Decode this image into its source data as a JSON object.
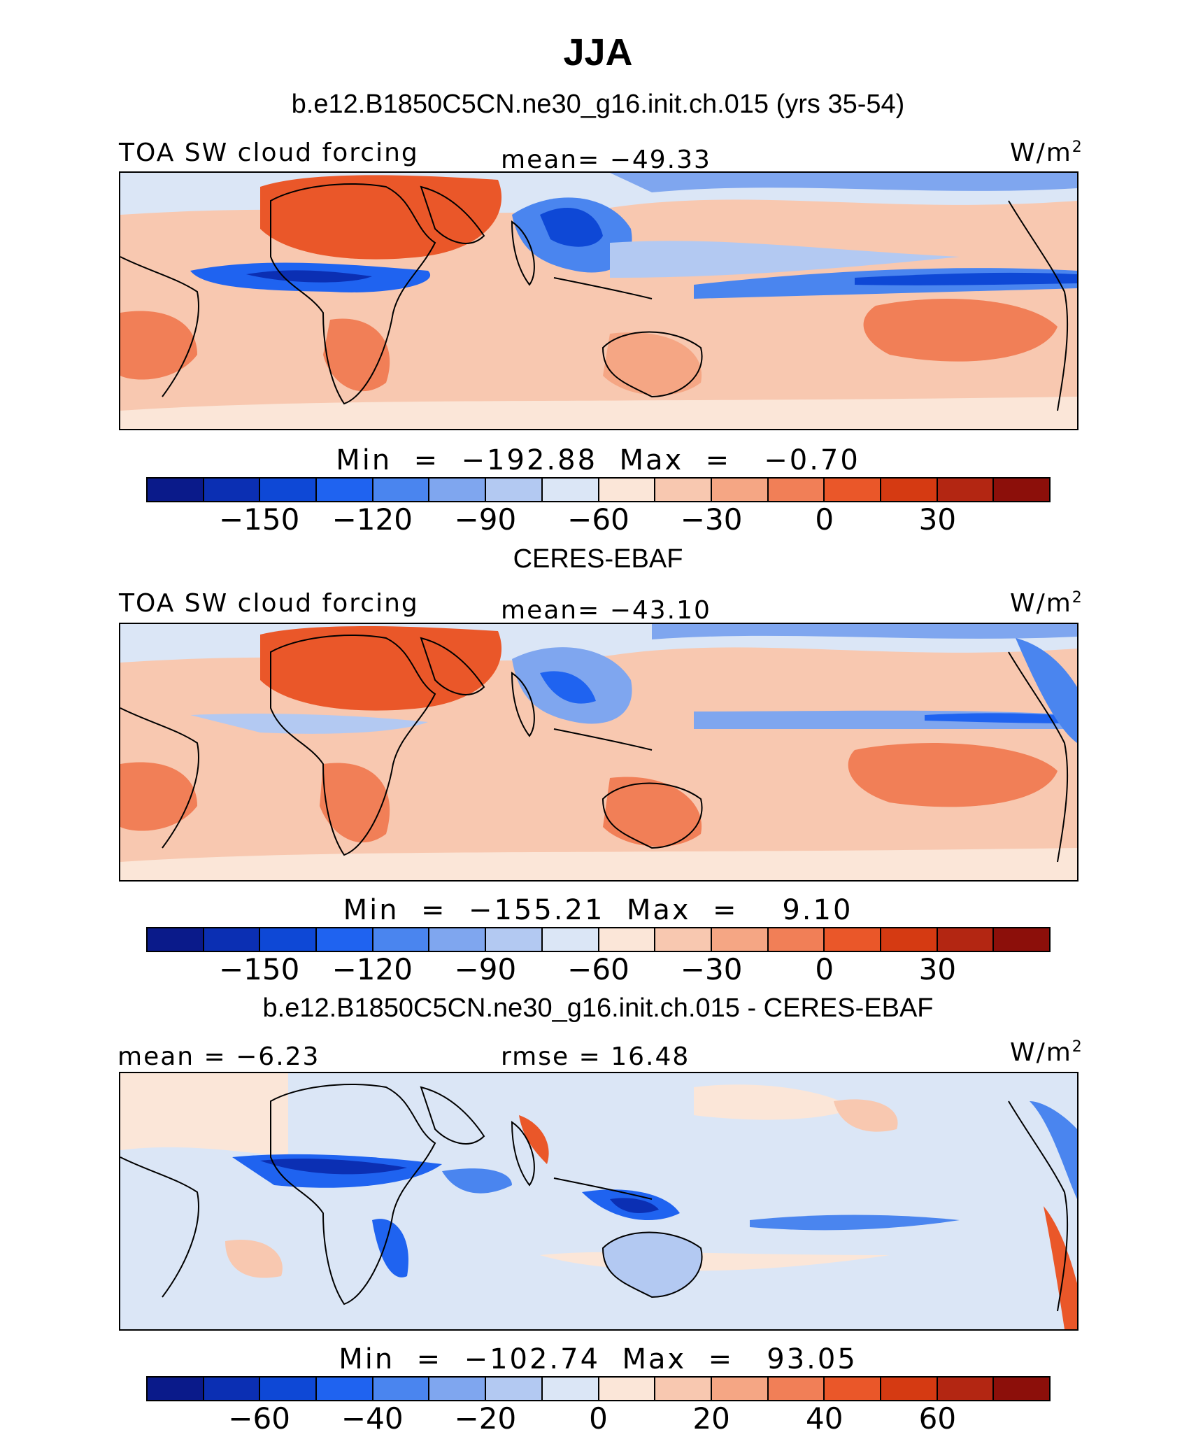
{
  "title": "JJA",
  "palette": [
    "#0a1a8a",
    "#0b2fb3",
    "#0e48d6",
    "#1f63f0",
    "#4a85ef",
    "#7fa6ef",
    "#b3c9f2",
    "#dbe6f6",
    "#fbe6d8",
    "#f8c8b0",
    "#f5a684",
    "#f17f57",
    "#ea5729",
    "#d53a12",
    "#b32612",
    "#8c0f0a"
  ],
  "panels": [
    {
      "heading": "b.e12.B1850C5CN.ne30_g16.init.ch.015 (yrs 35-54)",
      "left_label": "TOA SW cloud forcing",
      "center_label": "mean= −49.33",
      "units": "W/m",
      "units_sup": "2",
      "stats": "Min  =  −192.88  Max  =   −0.70",
      "ticks": [
        "−150",
        "−120",
        "−90",
        "−60",
        "−30",
        "0",
        "30"
      ],
      "map_data": {
        "variable": "TOA SW cloud forcing",
        "mean": -49.33,
        "min": -192.88,
        "max": -0.7,
        "levels": [
          -165,
          -150,
          -135,
          -120,
          -105,
          -90,
          -75,
          -60,
          -45,
          -30,
          -15,
          0,
          15,
          30,
          45
        ]
      }
    },
    {
      "heading": "CERES-EBAF",
      "left_label": "TOA SW cloud forcing",
      "center_label": "mean= −43.10",
      "units": "W/m",
      "units_sup": "2",
      "stats": "Min  =  −155.21  Max  =    9.10",
      "ticks": [
        "−150",
        "−120",
        "−90",
        "−60",
        "−30",
        "0",
        "30"
      ],
      "map_data": {
        "variable": "TOA SW cloud forcing",
        "mean": -43.1,
        "min": -155.21,
        "max": 9.1,
        "levels": [
          -165,
          -150,
          -135,
          -120,
          -105,
          -90,
          -75,
          -60,
          -45,
          -30,
          -15,
          0,
          15,
          30,
          45
        ]
      }
    },
    {
      "heading": "b.e12.B1850C5CN.ne30_g16.init.ch.015 - CERES-EBAF",
      "left_label": "mean =   −6.23",
      "center_label": "rmse =   16.48",
      "units": "W/m",
      "units_sup": "2",
      "stats": "Min  =  −102.74  Max  =   93.05",
      "ticks": [
        "−60",
        "−40",
        "−20",
        "0",
        "20",
        "40",
        "60"
      ],
      "map_data": {
        "variable": "difference",
        "mean": -6.23,
        "rmse": 16.48,
        "min": -102.74,
        "max": 93.05,
        "levels": [
          -70,
          -60,
          -50,
          -40,
          -30,
          -20,
          -10,
          0,
          10,
          20,
          30,
          40,
          50,
          60,
          70
        ]
      }
    }
  ]
}
